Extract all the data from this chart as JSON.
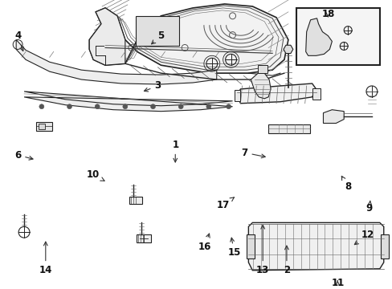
{
  "bg_color": "#ffffff",
  "fig_width": 4.89,
  "fig_height": 3.6,
  "dpi": 100,
  "line_color": "#222222",
  "fill_color": "#f8f8f8"
}
